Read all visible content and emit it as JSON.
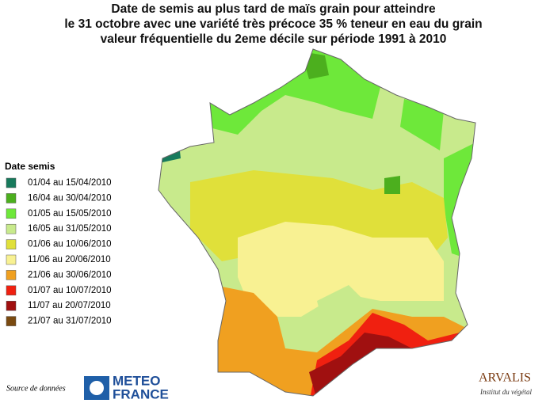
{
  "title": [
    "Date de semis au plus tard de maïs grain pour atteindre",
    "le 31 octobre avec une variété très précoce 35 % teneur en eau du grain",
    "valeur fréquentielle du 2eme décile sur période 1991 à 2010"
  ],
  "legend": {
    "title": "Date semis",
    "items": [
      {
        "label": "01/04 au 15/04/2010",
        "color": "#177a5c"
      },
      {
        "label": "16/04 au 30/04/2010",
        "color": "#4caf1e"
      },
      {
        "label": "01/05 au 15/05/2010",
        "color": "#6ee83a"
      },
      {
        "label": "16/05 au 31/05/2010",
        "color": "#c8ea8c"
      },
      {
        "label": "01/06 au 10/06/2010",
        "color": "#e0e03a"
      },
      {
        "label": "11/06 au 20/06/2010",
        "color": "#f8f192"
      },
      {
        "label": "21/06 au 30/06/2010",
        "color": "#f0a020"
      },
      {
        "label": "01/07 au 10/07/2010",
        "color": "#f02010"
      },
      {
        "label": "11/07 au 20/07/2010",
        "color": "#a01010"
      },
      {
        "label": "21/07 au 31/07/2010",
        "color": "#7a4a10"
      }
    ]
  },
  "source": "Source de données",
  "logos": {
    "meteo": [
      "METEO",
      "FRANCE"
    ],
    "arvalis": [
      "ARVALIS",
      "Institut du végétal"
    ]
  }
}
